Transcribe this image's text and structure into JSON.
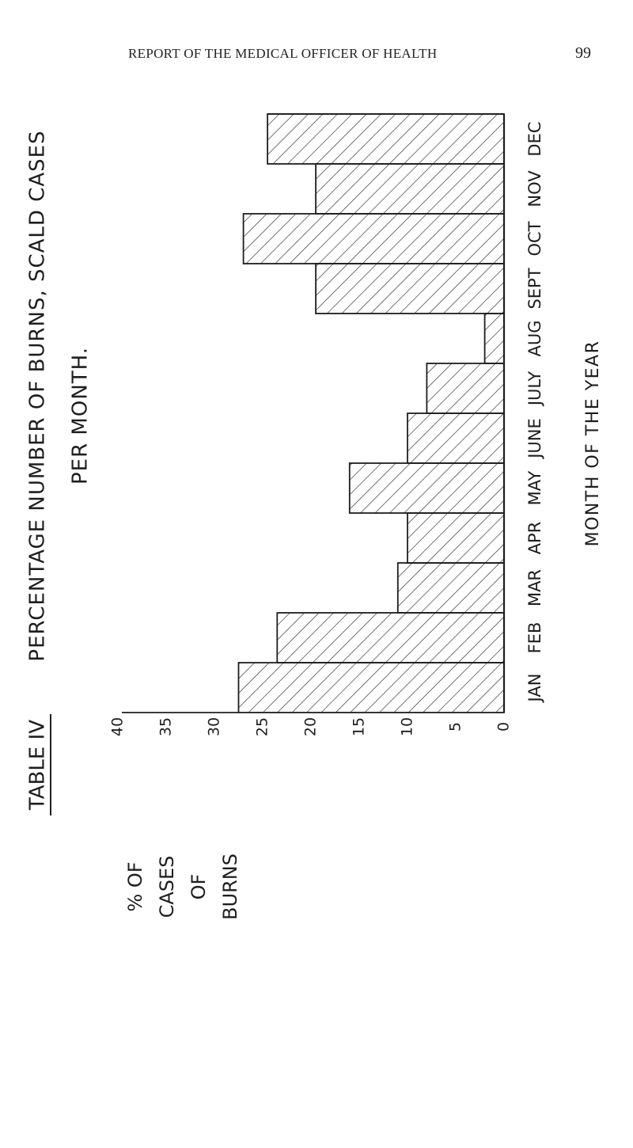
{
  "page": {
    "running_head": "REPORT OF THE MEDICAL OFFICER OF HEALTH",
    "page_number": "99"
  },
  "chart_data": {
    "type": "bar",
    "orientation": "rotated 90 degrees counter-clockwise on the page",
    "table_label": "TABLE IV",
    "title_line1": "PERCENTAGE NUMBER OF BURNS, SCALD CASES",
    "title_line2": "PER MONTH.",
    "ylabel_lines": [
      "% OF",
      "CASES",
      "OF",
      "BURNS"
    ],
    "xlabel": "MONTH OF THE YEAR",
    "categories": [
      "JAN",
      "FEB",
      "MAR",
      "APR",
      "MAY",
      "JUNE",
      "JULY",
      "AUG",
      "SEPT",
      "OCT",
      "NOV",
      "DEC"
    ],
    "values": [
      27.5,
      23.5,
      11.0,
      10.0,
      16.0,
      10.0,
      8.0,
      2.0,
      19.5,
      27.0,
      19.5,
      24.5
    ],
    "ylim": [
      0,
      40
    ],
    "yticks": [
      0,
      5,
      10,
      15,
      20,
      25,
      30,
      35,
      40
    ],
    "ytick_labels": [
      "0",
      "5",
      "10",
      "15",
      "20",
      "25",
      "30",
      "35",
      "40"
    ],
    "bar_fill": "diagonal hatching",
    "grid": false,
    "colors": {
      "ink": "#1e1e1e",
      "hatch": "#2a2a2a",
      "paper": "#ffffff"
    }
  }
}
